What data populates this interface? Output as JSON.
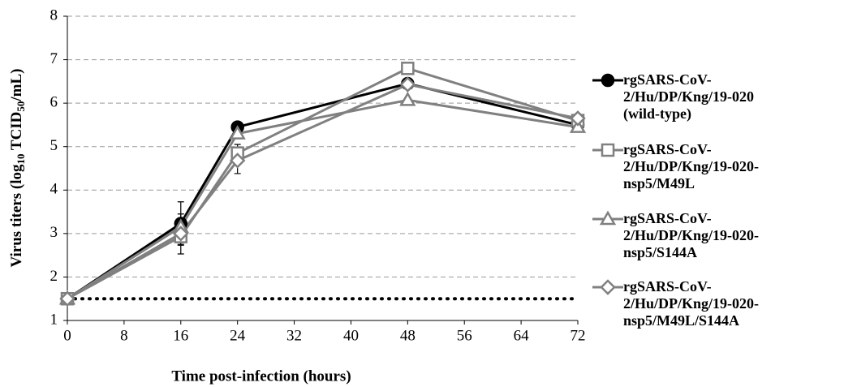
{
  "chart_data": {
    "type": "line",
    "x_label": "Time post-infection (hours)",
    "y_label_parts": [
      "Virus titers (log",
      "10",
      " TCID",
      "50",
      "/mL)"
    ],
    "x": [
      0,
      16,
      24,
      48,
      72
    ],
    "xlim": [
      0,
      72
    ],
    "xticks": [
      0,
      8,
      16,
      24,
      32,
      40,
      48,
      56,
      64,
      72
    ],
    "ylim": [
      1,
      8
    ],
    "yticks": [
      1,
      2,
      3,
      4,
      5,
      6,
      7,
      8
    ],
    "grid": true,
    "hline": 1.5,
    "series": [
      {
        "name": "rgSARS-CoV-2/Hu/DP/Kng/19-020 (wild-type)",
        "color": "#000000",
        "marker": "circle",
        "values": [
          1.5,
          3.23,
          5.45,
          6.45,
          5.5
        ],
        "errors": [
          0,
          0.5,
          0.1,
          0.05,
          0.1
        ]
      },
      {
        "name": "rgSARS-CoV-2/Hu/DP/Kng/19-020-nsp5/M49L",
        "color": "#808080",
        "marker": "square",
        "values": [
          1.5,
          2.93,
          4.85,
          6.8,
          5.6
        ],
        "errors": [
          0,
          0.4,
          0.2,
          0.05,
          0.05
        ]
      },
      {
        "name": "rgSARS-CoV-2/Hu/DP/Kng/19-020-nsp5/S144A",
        "color": "#808080",
        "marker": "triangle",
        "values": [
          1.5,
          3.15,
          5.3,
          6.07,
          5.45
        ],
        "errors": [
          0,
          0.3,
          0.1,
          0.05,
          0.05
        ]
      },
      {
        "name": "rgSARS-CoV-2/Hu/DP/Kng/19-020-nsp5/M49L/S144A",
        "color": "#808080",
        "marker": "diamond",
        "values": [
          1.5,
          3.0,
          4.68,
          6.43,
          5.65
        ],
        "errors": [
          0,
          0.25,
          0.3,
          0.05,
          0.1
        ]
      }
    ]
  }
}
